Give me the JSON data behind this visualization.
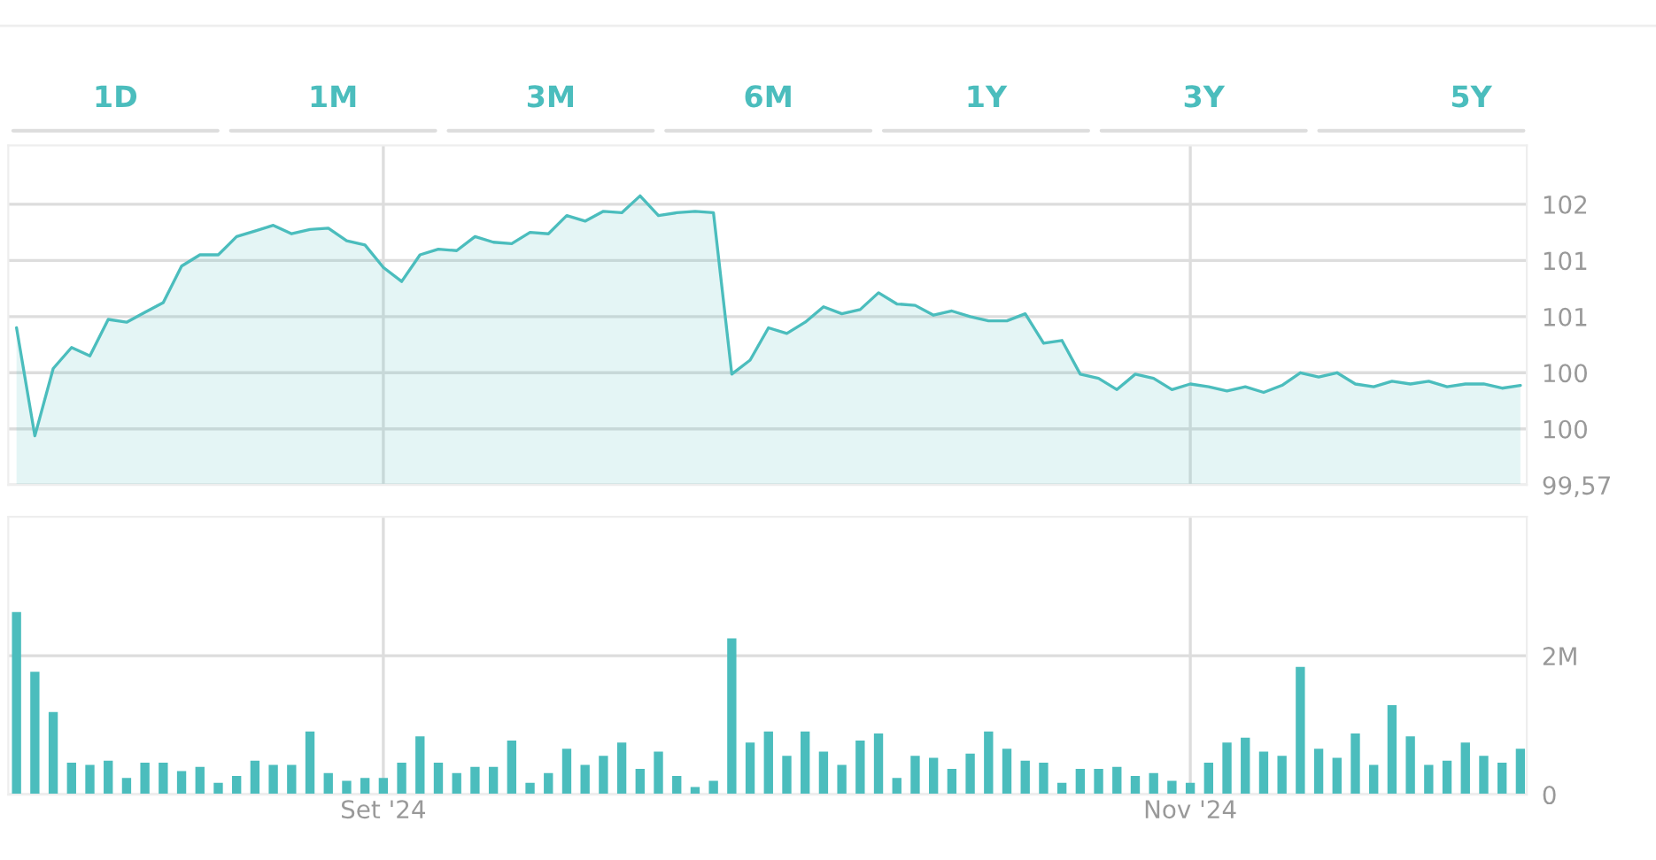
{
  "chart_data": [
    {
      "type": "area",
      "annotations": [
        "1D",
        "1M",
        "3M",
        "6M",
        "1Y",
        "3Y",
        "5Y"
      ],
      "categories": [
        null,
        null,
        null,
        null,
        null,
        null,
        null,
        null,
        null,
        null,
        null,
        null,
        null,
        null,
        null,
        null,
        null,
        null,
        null,
        null,
        null,
        null,
        null,
        null,
        null,
        null,
        null,
        null,
        null,
        null,
        null,
        null,
        null,
        null,
        null,
        null,
        null,
        null,
        null,
        null,
        null,
        null,
        null,
        null,
        null,
        null,
        null,
        null,
        null,
        null,
        null,
        null,
        null,
        null,
        null,
        null,
        null,
        null,
        null,
        null,
        null,
        null,
        null,
        null,
        null,
        null,
        null,
        null,
        null,
        null,
        null,
        null,
        null,
        null,
        null,
        null,
        null,
        null,
        null,
        null,
        null,
        null,
        null
      ],
      "values": [
        100.69,
        99.92,
        100.4,
        100.55,
        100.49,
        100.75,
        100.73,
        100.8,
        100.87,
        101.13,
        101.21,
        101.21,
        101.34,
        101.38,
        101.42,
        101.36,
        101.39,
        101.4,
        101.31,
        101.28,
        101.12,
        101.02,
        101.21,
        101.25,
        101.24,
        101.34,
        101.3,
        101.29,
        101.37,
        101.36,
        101.49,
        101.45,
        101.52,
        101.51,
        101.63,
        101.49,
        101.51,
        101.52,
        101.51,
        100.36,
        100.46,
        100.69,
        100.65,
        100.73,
        100.84,
        100.79,
        100.82,
        100.94,
        100.86,
        100.85,
        100.78,
        100.81,
        100.77,
        100.74,
        100.74,
        100.79,
        100.58,
        100.6,
        100.36,
        100.33,
        100.25,
        100.36,
        100.33,
        100.25,
        100.29,
        100.27,
        100.24,
        100.27,
        100.23,
        100.28,
        100.37,
        100.34,
        100.37,
        100.29,
        100.27,
        100.31,
        100.29,
        100.31,
        100.27,
        100.29,
        100.29,
        100.26,
        100.28
      ],
      "color": "#4bbdbd",
      "ylim": [
        99.57,
        101.99
      ],
      "yticks": [
        {
          "value": 99.57,
          "label": "99,57"
        },
        {
          "value": 99.97,
          "label": "100"
        },
        {
          "value": 100.37,
          "label": "100"
        },
        {
          "value": 100.77,
          "label": "101"
        },
        {
          "value": 101.17,
          "label": "101"
        },
        {
          "value": 101.57,
          "label": "102"
        }
      ],
      "grid": true,
      "tick_labels": "y"
    },
    {
      "type": "bar",
      "categories": [
        null,
        null,
        null,
        null,
        null,
        null,
        null,
        null,
        null,
        null,
        null,
        null,
        null,
        null,
        null,
        null,
        null,
        null,
        null,
        null,
        "Set '24",
        null,
        null,
        null,
        null,
        null,
        null,
        null,
        null,
        null,
        null,
        null,
        null,
        null,
        null,
        null,
        null,
        null,
        null,
        null,
        null,
        null,
        null,
        null,
        null,
        null,
        null,
        null,
        null,
        null,
        null,
        null,
        null,
        null,
        null,
        null,
        null,
        null,
        null,
        null,
        null,
        null,
        null,
        null,
        "Nov '24",
        null,
        null,
        null,
        null,
        null,
        null,
        null,
        null,
        null,
        null,
        null,
        null,
        null,
        null,
        null,
        null,
        null,
        null
      ],
      "values": [
        2630000,
        1770000,
        1190000,
        460000,
        430000,
        490000,
        240000,
        460000,
        460000,
        340000,
        400000,
        170000,
        270000,
        490000,
        430000,
        430000,
        910000,
        310000,
        200000,
        240000,
        240000,
        460000,
        840000,
        460000,
        310000,
        400000,
        400000,
        780000,
        170000,
        310000,
        660000,
        430000,
        560000,
        750000,
        370000,
        620000,
        270000,
        110000,
        200000,
        2250000,
        750000,
        910000,
        560000,
        910000,
        620000,
        430000,
        780000,
        880000,
        240000,
        560000,
        530000,
        370000,
        590000,
        910000,
        660000,
        490000,
        460000,
        170000,
        370000,
        370000,
        400000,
        270000,
        310000,
        200000,
        170000,
        460000,
        750000,
        820000,
        620000,
        560000,
        1840000,
        660000,
        530000,
        880000,
        430000,
        1290000,
        840000,
        430000,
        490000,
        750000,
        560000,
        460000,
        660000
      ],
      "color": "#4bbdbd",
      "ylim": [
        0,
        4000000
      ],
      "yticks": [
        {
          "value": 0,
          "label": "0"
        },
        {
          "value": 2000000,
          "label": "2M"
        }
      ],
      "grid": true
    }
  ]
}
